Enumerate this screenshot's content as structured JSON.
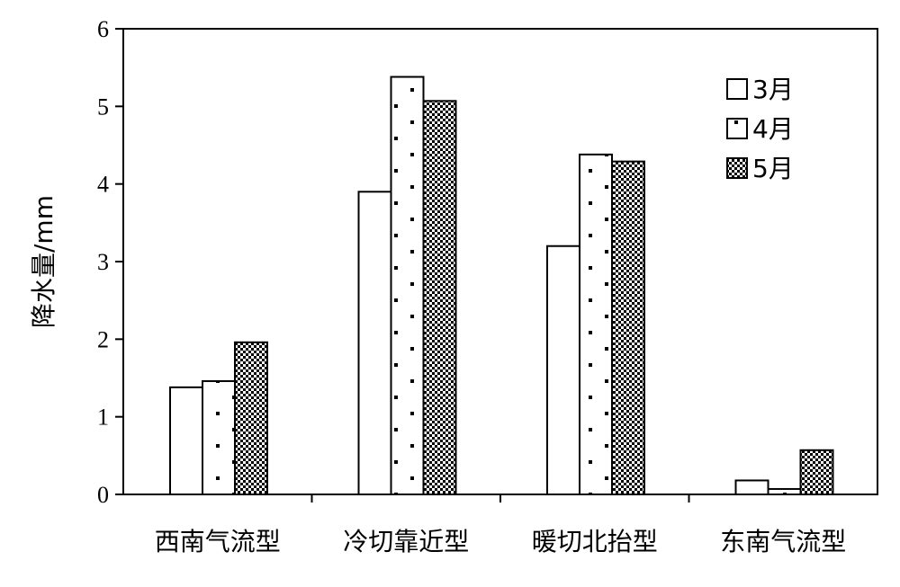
{
  "chart_data": {
    "type": "bar",
    "title": "",
    "xlabel": "",
    "ylabel": "降水量/mm",
    "ylim": [
      0,
      6
    ],
    "yticks": [
      "0",
      "1",
      "2",
      "3",
      "4",
      "5",
      "6"
    ],
    "categories": [
      "西南气流型",
      "冷切靠近型",
      "暖切北抬型",
      "东南气流型"
    ],
    "series": [
      {
        "name": "3月",
        "pattern": "white",
        "values": [
          1.38,
          3.9,
          3.2,
          0.18
        ]
      },
      {
        "name": "4月",
        "pattern": "dots",
        "values": [
          1.46,
          5.38,
          4.38,
          0.07
        ]
      },
      {
        "name": "5月",
        "pattern": "checker",
        "values": [
          1.96,
          5.07,
          4.29,
          0.57
        ]
      }
    ],
    "grid": false,
    "legend": "top-right",
    "colors": {
      "stroke": "#000000",
      "fill": "#ffffff"
    }
  }
}
